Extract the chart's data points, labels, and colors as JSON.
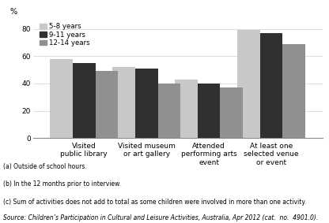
{
  "categories": [
    "Visited\npublic library",
    "Visited museum\nor art gallery",
    "Attended\nperforming arts\nevent",
    "At least one\nselected venue\nor event"
  ],
  "series": {
    "5-8 years": [
      58,
      52,
      43,
      79
    ],
    "9-11 years": [
      55,
      51,
      40,
      77
    ],
    "12-14 years": [
      49,
      40,
      37,
      69
    ]
  },
  "colors": {
    "5-8 years": "#c8c8c8",
    "9-11 years": "#303030",
    "12-14 years": "#909090"
  },
  "ylim": [
    0,
    88
  ],
  "yticks": [
    0,
    20,
    40,
    60,
    80
  ],
  "legend_labels": [
    "5-8 years",
    "9-11 years",
    "12-14 years"
  ],
  "footnotes": [
    "(a) Outside of school hours.",
    "(b) In the 12 months prior to interview.",
    "(c) Sum of activities does not add to total as some children were involved in more than one activity."
  ],
  "source": "Source: Children’s Participation in Cultural and Leisure Activities, Australia, Apr 2012 (cat.  no.  4901.0)."
}
